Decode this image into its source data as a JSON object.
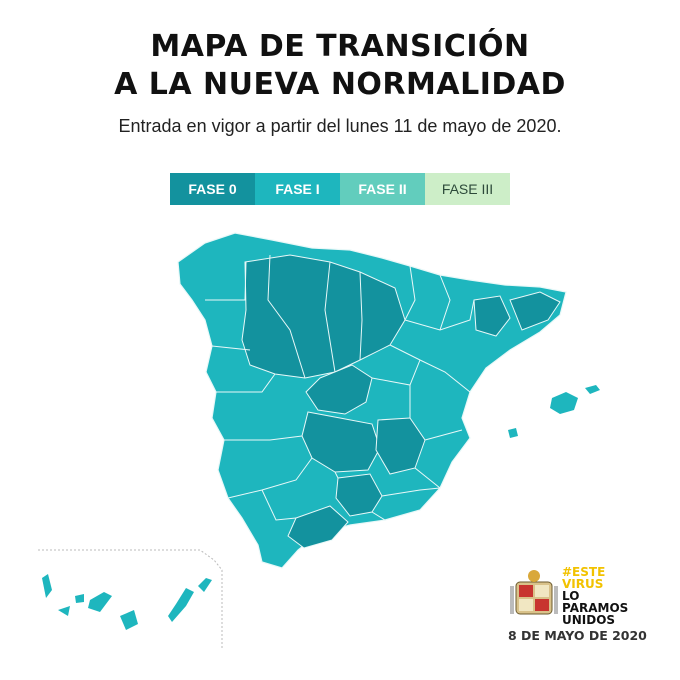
{
  "header": {
    "title_line1": "MAPA DE TRANSICIÓN",
    "title_line2": "A LA NUEVA NORMALIDAD",
    "subtitle": "Entrada en vigor a partir del lunes 11 de mayo de 2020."
  },
  "legend": [
    {
      "label": "FASE 0",
      "color": "#13929e"
    },
    {
      "label": "FASE I",
      "color": "#1eb6be"
    },
    {
      "label": "FASE II",
      "color": "#62cdbd"
    },
    {
      "label": "FASE III",
      "color": "#cdeec8"
    }
  ],
  "map": {
    "phase0_color": "#13929e",
    "phase1_color": "#1eb6be",
    "border_color": "#e8f8f8"
  },
  "footer": {
    "slogan_line1": "#ESTE",
    "slogan_line2": "VIRUS",
    "slogan_line3": "LO",
    "slogan_line4": "PARAMOS",
    "slogan_line5": "UNIDOS",
    "date": "8 DE MAYO DE 2020",
    "slogan_color": "#f2c200"
  }
}
